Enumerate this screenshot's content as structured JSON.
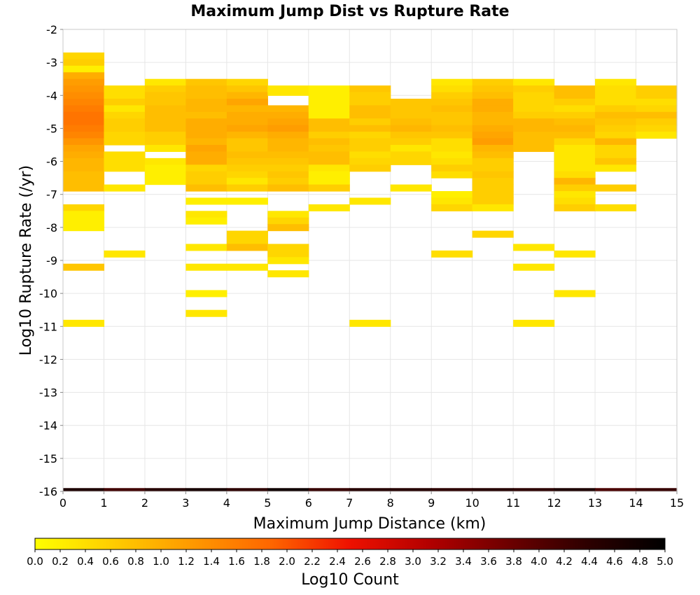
{
  "chart_data": {
    "type": "heatmap",
    "title": "Maximum Jump Dist vs Rupture Rate",
    "xlabel": "Maximum Jump Distance (km)",
    "ylabel": "Log10 Rupture Rate (/yr)",
    "xlim": [
      0,
      15
    ],
    "ylim": [
      -16,
      -2
    ],
    "x_ticks": [
      "0",
      "1",
      "2",
      "3",
      "4",
      "5",
      "6",
      "7",
      "8",
      "9",
      "10",
      "11",
      "12",
      "13",
      "14",
      "15"
    ],
    "y_ticks": [
      "-2",
      "-3",
      "-4",
      "-5",
      "-6",
      "-7",
      "-8",
      "-9",
      "-10",
      "-11",
      "-12",
      "-13",
      "-14",
      "-15",
      "-16"
    ],
    "grid": true,
    "x_bin_width": 1,
    "y_bin_height": 0.2,
    "colorbar": {
      "label": "Log10 Count",
      "range": [
        0,
        5
      ],
      "ticks": [
        "0.0",
        "0.2",
        "0.4",
        "0.6",
        "0.8",
        "1.0",
        "1.2",
        "1.4",
        "1.6",
        "1.8",
        "2.0",
        "2.2",
        "2.4",
        "2.6",
        "2.8",
        "3.0",
        "3.2",
        "3.4",
        "3.6",
        "3.8",
        "4.0",
        "4.2",
        "4.4",
        "4.6",
        "4.8",
        "5.0"
      ],
      "colors": [
        "#ffff00",
        "#ffcc00",
        "#ff9900",
        "#ff6600",
        "#ee1100",
        "#b30000",
        "#6e0000",
        "#2e0000",
        "#000000"
      ]
    },
    "bottom_row": {
      "y": -16,
      "values": [
        4.6,
        4.2,
        4.5,
        4.7,
        4.4,
        4.8,
        4.3,
        4.5,
        4.5,
        4.4,
        4.5,
        4.4,
        4.6,
        4.1,
        4.3
      ]
    },
    "cells": [
      [
        0,
        -2.8,
        0.5
      ],
      [
        0,
        -3.0,
        0.6
      ],
      [
        0,
        -3.2,
        0.2
      ],
      [
        0,
        -3.4,
        1.0
      ],
      [
        0,
        -3.6,
        1.2
      ],
      [
        0,
        -3.8,
        1.3
      ],
      [
        0,
        -4.0,
        1.4
      ],
      [
        0,
        -4.2,
        1.5
      ],
      [
        0,
        -4.4,
        1.6
      ],
      [
        0,
        -4.6,
        1.7
      ],
      [
        0,
        -4.8,
        1.7
      ],
      [
        0,
        -5.0,
        1.6
      ],
      [
        0,
        -5.2,
        1.5
      ],
      [
        0,
        -5.4,
        1.3
      ],
      [
        0,
        -5.6,
        1.1
      ],
      [
        0,
        -5.8,
        1.0
      ],
      [
        0,
        -6.0,
        0.9
      ],
      [
        0,
        -6.2,
        0.9
      ],
      [
        0,
        -6.4,
        0.8
      ],
      [
        0,
        -6.6,
        0.8
      ],
      [
        0,
        -6.8,
        0.8
      ],
      [
        0,
        -7.4,
        0.5
      ],
      [
        0,
        -7.6,
        0.2
      ],
      [
        0,
        -7.8,
        0.2
      ],
      [
        0,
        -8.0,
        0.2
      ],
      [
        0,
        -9.2,
        0.7
      ],
      [
        0,
        -10.9,
        0.3
      ],
      [
        1,
        -3.8,
        0.4
      ],
      [
        1,
        -4.0,
        0.4
      ],
      [
        1,
        -4.2,
        0.6
      ],
      [
        1,
        -4.4,
        0.3
      ],
      [
        1,
        -4.6,
        0.5
      ],
      [
        1,
        -4.8,
        0.6
      ],
      [
        1,
        -5.0,
        0.6
      ],
      [
        1,
        -5.2,
        0.5
      ],
      [
        1,
        -5.4,
        0.5
      ],
      [
        1,
        -5.8,
        0.4
      ],
      [
        1,
        -6.0,
        0.4
      ],
      [
        1,
        -6.2,
        0.4
      ],
      [
        1,
        -6.8,
        0.3
      ],
      [
        1,
        -8.8,
        0.3
      ],
      [
        2,
        -3.6,
        0.3
      ],
      [
        2,
        -3.8,
        0.6
      ],
      [
        2,
        -4.0,
        0.7
      ],
      [
        2,
        -4.2,
        0.7
      ],
      [
        2,
        -4.4,
        0.8
      ],
      [
        2,
        -4.6,
        0.8
      ],
      [
        2,
        -4.8,
        0.8
      ],
      [
        2,
        -5.0,
        0.8
      ],
      [
        2,
        -5.2,
        0.6
      ],
      [
        2,
        -5.4,
        0.6
      ],
      [
        2,
        -5.6,
        0.3
      ],
      [
        2,
        -6.0,
        0.3
      ],
      [
        2,
        -6.2,
        0.2
      ],
      [
        2,
        -6.4,
        0.2
      ],
      [
        2,
        -6.6,
        0.2
      ],
      [
        3,
        -3.6,
        0.7
      ],
      [
        3,
        -3.8,
        0.8
      ],
      [
        3,
        -4.0,
        0.8
      ],
      [
        3,
        -4.2,
        0.9
      ],
      [
        3,
        -4.4,
        0.9
      ],
      [
        3,
        -4.6,
        0.8
      ],
      [
        3,
        -4.8,
        1.0
      ],
      [
        3,
        -5.0,
        1.0
      ],
      [
        3,
        -5.2,
        1.0
      ],
      [
        3,
        -5.4,
        0.9
      ],
      [
        3,
        -5.6,
        1.1
      ],
      [
        3,
        -5.8,
        1.0
      ],
      [
        3,
        -6.0,
        1.0
      ],
      [
        3,
        -6.2,
        0.5
      ],
      [
        3,
        -6.4,
        0.6
      ],
      [
        3,
        -6.6,
        0.6
      ],
      [
        3,
        -6.8,
        0.8
      ],
      [
        3,
        -7.2,
        0.2
      ],
      [
        3,
        -7.6,
        0.3
      ],
      [
        3,
        -7.8,
        0.2
      ],
      [
        3,
        -8.6,
        0.3
      ],
      [
        3,
        -9.2,
        0.3
      ],
      [
        3,
        -10.0,
        0.2
      ],
      [
        3,
        -10.6,
        0.3
      ],
      [
        4,
        -3.6,
        0.5
      ],
      [
        4,
        -3.8,
        0.7
      ],
      [
        4,
        -4.0,
        0.9
      ],
      [
        4,
        -4.2,
        1.1
      ],
      [
        4,
        -4.4,
        0.9
      ],
      [
        4,
        -4.6,
        1.0
      ],
      [
        4,
        -4.8,
        1.0
      ],
      [
        4,
        -5.0,
        1.1
      ],
      [
        4,
        -5.2,
        0.9
      ],
      [
        4,
        -5.4,
        0.7
      ],
      [
        4,
        -5.6,
        0.7
      ],
      [
        4,
        -5.8,
        0.8
      ],
      [
        4,
        -6.0,
        0.7
      ],
      [
        4,
        -6.2,
        0.6
      ],
      [
        4,
        -6.4,
        0.5
      ],
      [
        4,
        -6.6,
        0.3
      ],
      [
        4,
        -6.8,
        0.6
      ],
      [
        4,
        -7.2,
        0.2
      ],
      [
        4,
        -8.2,
        0.5
      ],
      [
        4,
        -8.4,
        0.5
      ],
      [
        4,
        -8.6,
        0.8
      ],
      [
        4,
        -9.2,
        0.3
      ],
      [
        5,
        -3.8,
        0.3
      ],
      [
        5,
        -3.9,
        0.3
      ],
      [
        5,
        -4.4,
        0.9
      ],
      [
        5,
        -4.6,
        1.0
      ],
      [
        5,
        -4.8,
        1.1
      ],
      [
        5,
        -5.0,
        1.2
      ],
      [
        5,
        -5.2,
        1.0
      ],
      [
        5,
        -5.4,
        0.9
      ],
      [
        5,
        -5.6,
        0.9
      ],
      [
        5,
        -5.8,
        0.8
      ],
      [
        5,
        -6.0,
        0.7
      ],
      [
        5,
        -6.2,
        0.6
      ],
      [
        5,
        -6.4,
        0.7
      ],
      [
        5,
        -6.6,
        0.6
      ],
      [
        5,
        -6.8,
        0.8
      ],
      [
        5,
        -7.6,
        0.3
      ],
      [
        5,
        -7.8,
        0.5
      ],
      [
        5,
        -8.0,
        0.8
      ],
      [
        5,
        -8.6,
        0.5
      ],
      [
        5,
        -8.8,
        0.5
      ],
      [
        5,
        -9.0,
        0.3
      ],
      [
        5,
        -9.4,
        0.3
      ],
      [
        6,
        -3.8,
        0.2
      ],
      [
        6,
        -4.0,
        0.2
      ],
      [
        6,
        -4.2,
        0.2
      ],
      [
        6,
        -4.4,
        0.2
      ],
      [
        6,
        -4.6,
        0.2
      ],
      [
        6,
        -4.8,
        0.8
      ],
      [
        6,
        -5.0,
        0.8
      ],
      [
        6,
        -5.2,
        0.6
      ],
      [
        6,
        -5.4,
        0.8
      ],
      [
        6,
        -5.6,
        0.7
      ],
      [
        6,
        -5.8,
        0.8
      ],
      [
        6,
        -6.0,
        0.8
      ],
      [
        6,
        -6.2,
        0.3
      ],
      [
        6,
        -6.4,
        0.2
      ],
      [
        6,
        -6.6,
        0.2
      ],
      [
        6,
        -6.8,
        0.6
      ],
      [
        6,
        -7.4,
        0.3
      ],
      [
        7,
        -3.8,
        0.7
      ],
      [
        7,
        -4.0,
        0.6
      ],
      [
        7,
        -4.2,
        0.6
      ],
      [
        7,
        -4.4,
        0.8
      ],
      [
        7,
        -4.6,
        0.8
      ],
      [
        7,
        -4.8,
        0.6
      ],
      [
        7,
        -5.0,
        0.8
      ],
      [
        7,
        -5.2,
        0.5
      ],
      [
        7,
        -5.4,
        0.6
      ],
      [
        7,
        -5.6,
        0.6
      ],
      [
        7,
        -5.8,
        0.4
      ],
      [
        7,
        -6.0,
        0.5
      ],
      [
        7,
        -6.2,
        0.6
      ],
      [
        7,
        -7.2,
        0.3
      ],
      [
        7,
        -10.9,
        0.3
      ],
      [
        8,
        -4.2,
        0.7
      ],
      [
        8,
        -4.4,
        0.7
      ],
      [
        8,
        -4.6,
        0.7
      ],
      [
        8,
        -4.8,
        0.8
      ],
      [
        8,
        -5.0,
        0.9
      ],
      [
        8,
        -5.2,
        0.7
      ],
      [
        8,
        -5.4,
        0.6
      ],
      [
        8,
        -5.6,
        0.3
      ],
      [
        8,
        -5.8,
        0.5
      ],
      [
        8,
        -6.0,
        0.5
      ],
      [
        8,
        -6.8,
        0.3
      ],
      [
        9,
        -3.6,
        0.3
      ],
      [
        9,
        -3.8,
        0.4
      ],
      [
        9,
        -4.0,
        0.6
      ],
      [
        9,
        -4.2,
        0.7
      ],
      [
        9,
        -4.4,
        0.8
      ],
      [
        9,
        -4.6,
        0.7
      ],
      [
        9,
        -4.8,
        0.7
      ],
      [
        9,
        -5.0,
        0.8
      ],
      [
        9,
        -5.2,
        0.7
      ],
      [
        9,
        -5.4,
        0.4
      ],
      [
        9,
        -5.6,
        0.4
      ],
      [
        9,
        -5.8,
        0.3
      ],
      [
        9,
        -6.0,
        0.4
      ],
      [
        9,
        -6.2,
        0.6
      ],
      [
        9,
        -6.4,
        0.4
      ],
      [
        9,
        -7.0,
        0.2
      ],
      [
        9,
        -7.2,
        0.3
      ],
      [
        9,
        -7.4,
        0.5
      ],
      [
        9,
        -8.8,
        0.4
      ],
      [
        10,
        -3.6,
        0.6
      ],
      [
        10,
        -3.8,
        0.7
      ],
      [
        10,
        -4.0,
        0.8
      ],
      [
        10,
        -4.2,
        1.0
      ],
      [
        10,
        -4.4,
        1.0
      ],
      [
        10,
        -4.6,
        0.9
      ],
      [
        10,
        -4.8,
        0.9
      ],
      [
        10,
        -5.0,
        1.0
      ],
      [
        10,
        -5.2,
        1.1
      ],
      [
        10,
        -5.4,
        1.2
      ],
      [
        10,
        -5.6,
        0.9
      ],
      [
        10,
        -5.8,
        0.8
      ],
      [
        10,
        -6.0,
        0.6
      ],
      [
        10,
        -6.2,
        0.6
      ],
      [
        10,
        -6.4,
        0.7
      ],
      [
        10,
        -6.6,
        0.6
      ],
      [
        10,
        -6.8,
        0.6
      ],
      [
        10,
        -7.0,
        0.6
      ],
      [
        10,
        -7.2,
        0.6
      ],
      [
        10,
        -7.4,
        0.3
      ],
      [
        10,
        -8.2,
        0.5
      ],
      [
        11,
        -3.6,
        0.3
      ],
      [
        11,
        -3.8,
        0.6
      ],
      [
        11,
        -4.0,
        0.5
      ],
      [
        11,
        -4.2,
        0.5
      ],
      [
        11,
        -4.4,
        0.5
      ],
      [
        11,
        -4.6,
        0.6
      ],
      [
        11,
        -4.8,
        0.9
      ],
      [
        11,
        -5.0,
        0.9
      ],
      [
        11,
        -5.2,
        0.8
      ],
      [
        11,
        -5.4,
        0.8
      ],
      [
        11,
        -5.6,
        0.8
      ],
      [
        11,
        -8.6,
        0.3
      ],
      [
        11,
        -9.2,
        0.3
      ],
      [
        11,
        -10.9,
        0.3
      ],
      [
        12,
        -3.8,
        0.8
      ],
      [
        12,
        -4.0,
        0.8
      ],
      [
        12,
        -4.2,
        0.6
      ],
      [
        12,
        -4.4,
        0.4
      ],
      [
        12,
        -4.6,
        0.6
      ],
      [
        12,
        -4.8,
        0.8
      ],
      [
        12,
        -5.0,
        0.9
      ],
      [
        12,
        -5.2,
        0.8
      ],
      [
        12,
        -5.4,
        0.5
      ],
      [
        12,
        -5.6,
        0.3
      ],
      [
        12,
        -5.8,
        0.3
      ],
      [
        12,
        -6.0,
        0.3
      ],
      [
        12,
        -6.2,
        0.3
      ],
      [
        12,
        -6.4,
        0.4
      ],
      [
        12,
        -6.6,
        0.9
      ],
      [
        12,
        -6.8,
        0.6
      ],
      [
        12,
        -7.0,
        0.3
      ],
      [
        12,
        -7.2,
        0.4
      ],
      [
        12,
        -7.4,
        0.6
      ],
      [
        12,
        -8.8,
        0.3
      ],
      [
        12,
        -10.0,
        0.3
      ],
      [
        13,
        -3.6,
        0.3
      ],
      [
        13,
        -3.8,
        0.4
      ],
      [
        13,
        -4.0,
        0.4
      ],
      [
        13,
        -4.2,
        0.4
      ],
      [
        13,
        -4.4,
        0.6
      ],
      [
        13,
        -4.6,
        0.8
      ],
      [
        13,
        -4.8,
        0.7
      ],
      [
        13,
        -5.0,
        0.6
      ],
      [
        13,
        -5.2,
        0.5
      ],
      [
        13,
        -5.4,
        0.9
      ],
      [
        13,
        -5.6,
        0.5
      ],
      [
        13,
        -5.8,
        0.5
      ],
      [
        13,
        -6.0,
        0.7
      ],
      [
        13,
        -6.2,
        0.3
      ],
      [
        13,
        -6.8,
        0.6
      ],
      [
        13,
        -7.4,
        0.4
      ],
      [
        14,
        -3.8,
        0.6
      ],
      [
        14,
        -4.0,
        0.6
      ],
      [
        14,
        -4.2,
        0.4
      ],
      [
        14,
        -4.4,
        0.5
      ],
      [
        14,
        -4.6,
        0.8
      ],
      [
        14,
        -4.8,
        0.6
      ],
      [
        14,
        -5.0,
        0.5
      ],
      [
        14,
        -5.2,
        0.3
      ]
    ]
  }
}
